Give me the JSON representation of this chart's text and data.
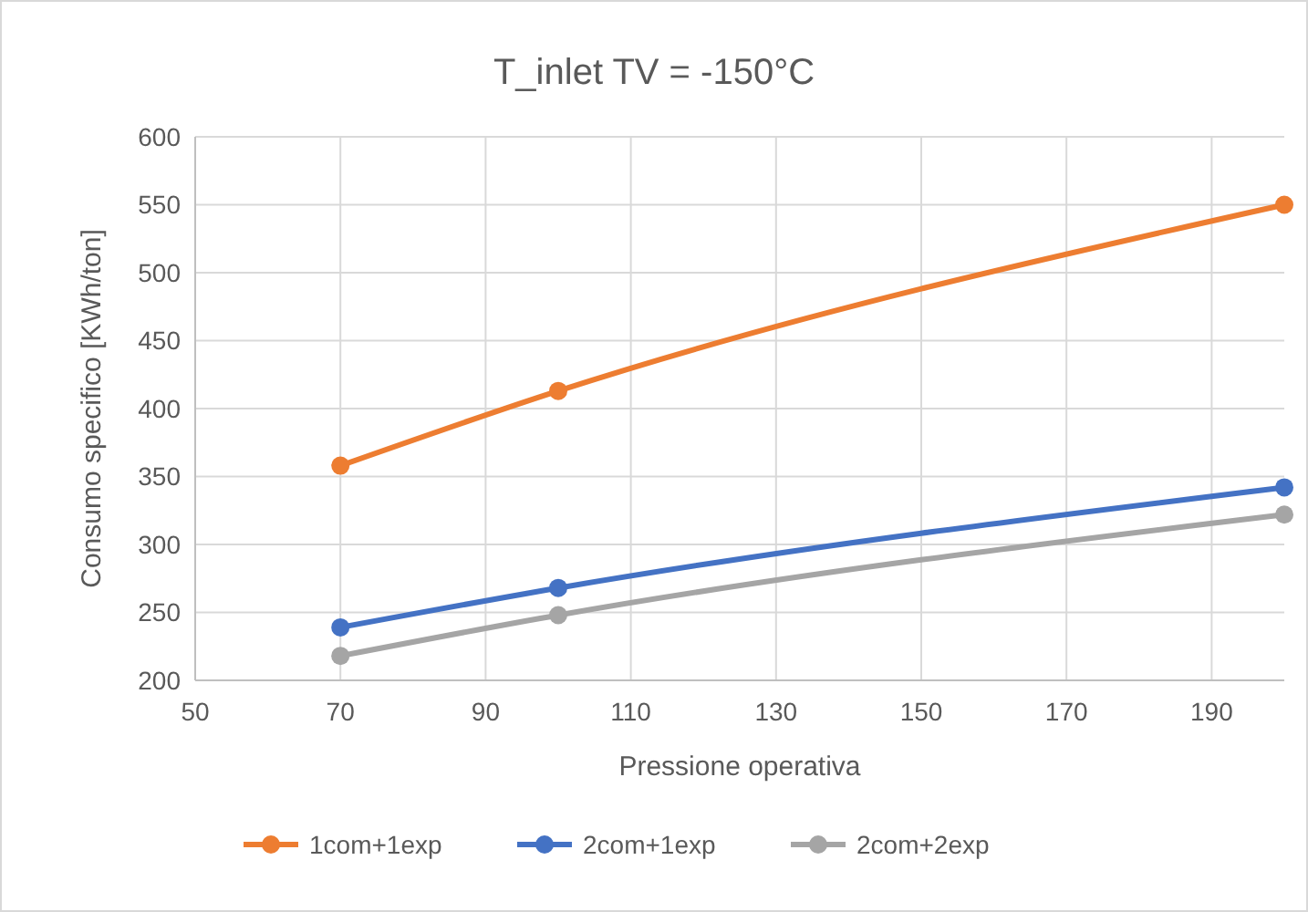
{
  "chart_data": {
    "type": "line",
    "title": "T_inlet TV = -150°C",
    "xlabel": "Pressione operativa",
    "ylabel": "Consumo specifico [KWh/ton]",
    "x": [
      70,
      100,
      200
    ],
    "series": [
      {
        "name": "1com+1exp",
        "color": "#ed7d31",
        "values": [
          358,
          413,
          550
        ]
      },
      {
        "name": "2com+1exp",
        "color": "#4472c4",
        "values": [
          239,
          268,
          342
        ]
      },
      {
        "name": "2com+2exp",
        "color": "#a5a5a5",
        "values": [
          218,
          248,
          322
        ]
      }
    ],
    "xlim": [
      50,
      200
    ],
    "xticks": [
      50,
      70,
      90,
      110,
      130,
      150,
      170,
      190
    ],
    "ylim": [
      200,
      600
    ],
    "yticks": [
      200,
      250,
      300,
      350,
      400,
      450,
      500,
      550,
      600
    ],
    "grid": true,
    "legend": "bottom",
    "marker": "circle",
    "line_style": "solid"
  }
}
